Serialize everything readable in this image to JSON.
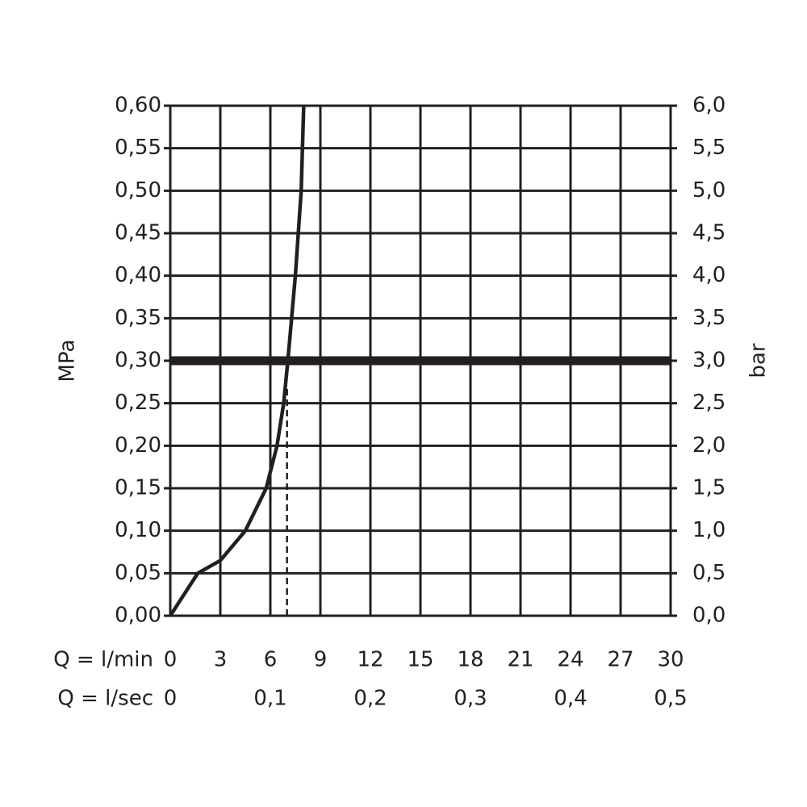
{
  "chart_data": {
    "type": "line",
    "x_label": "Q = l/min",
    "x2_label": "Q = l/sec",
    "y_label": "MPa",
    "y2_label": "bar",
    "xlim": [
      0,
      30
    ],
    "xticks": [
      0,
      3,
      6,
      9,
      12,
      15,
      18,
      21,
      24,
      27,
      30
    ],
    "x2lim": [
      0,
      0.5
    ],
    "x2ticks": [
      0,
      {
        "value": 0.1,
        "label": "0,1"
      },
      {
        "value": 0.2,
        "label": "0,2"
      },
      {
        "value": 0.3,
        "label": "0,3"
      },
      {
        "value": 0.4,
        "label": "0,4"
      },
      {
        "value": 0.5,
        "label": "0,5"
      }
    ],
    "ylim": [
      0,
      0.6
    ],
    "yticks": [
      {
        "value": 0,
        "label": "0,00"
      },
      {
        "value": 0.05,
        "label": "0,05"
      },
      {
        "value": 0.1,
        "label": "0,10"
      },
      {
        "value": 0.15,
        "label": "0,15"
      },
      {
        "value": 0.2,
        "label": "0,20"
      },
      {
        "value": 0.25,
        "label": "0,25"
      },
      {
        "value": 0.3,
        "label": "0,30"
      },
      {
        "value": 0.35,
        "label": "0,35"
      },
      {
        "value": 0.4,
        "label": "0,40"
      },
      {
        "value": 0.45,
        "label": "0,45"
      },
      {
        "value": 0.5,
        "label": "0,50"
      },
      {
        "value": 0.55,
        "label": "0,55"
      },
      {
        "value": 0.6,
        "label": "0,60"
      }
    ],
    "y2lim": [
      0,
      6
    ],
    "y2ticks": [
      {
        "value": 0,
        "label": "0,0"
      },
      {
        "value": 0.5,
        "label": "0,5"
      },
      {
        "value": 1,
        "label": "1,0"
      },
      {
        "value": 1.5,
        "label": "1,5"
      },
      {
        "value": 2,
        "label": "2,0"
      },
      {
        "value": 2.5,
        "label": "2,5"
      },
      {
        "value": 3,
        "label": "3,0"
      },
      {
        "value": 3.5,
        "label": "3,5"
      },
      {
        "value": 4,
        "label": "4,0"
      },
      {
        "value": 4.5,
        "label": "4,5"
      },
      {
        "value": 5,
        "label": "5,0"
      },
      {
        "value": 5.5,
        "label": "5,5"
      },
      {
        "value": 6,
        "label": "6,0"
      }
    ],
    "grid": true,
    "series": [
      {
        "color": "#231f20",
        "x": [
          0,
          1.65,
          3,
          4.5,
          5.75,
          6.4,
          6.8,
          7.05,
          7.5,
          7.85,
          8.0
        ],
        "values": [
          0,
          0.05,
          0.065,
          0.1,
          0.15,
          0.2,
          0.25,
          0.3,
          0.4,
          0.5,
          0.6
        ]
      }
    ],
    "reference_line": {
      "y": 0.3,
      "color": "#231f20"
    },
    "dashed_line": {
      "x": 7,
      "y": 0.27,
      "color": "#231f20"
    }
  }
}
